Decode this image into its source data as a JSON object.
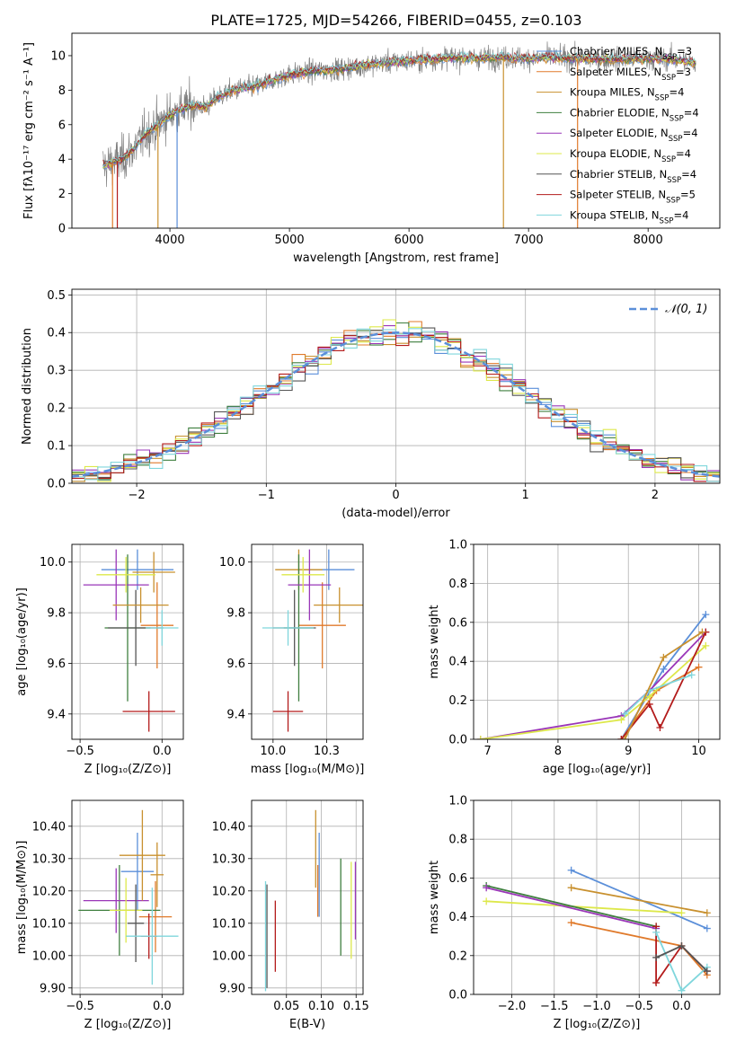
{
  "title": "PLATE=1725, MJD=54266, FIBERID=0455, z=0.103",
  "series": [
    {
      "name": "Chabrier MILES, N",
      "sub": "SSP",
      "tail": "=3",
      "color": "#5b8fd9"
    },
    {
      "name": "Salpeter MILES, N",
      "sub": "SSP",
      "tail": "=3",
      "color": "#e07a2b"
    },
    {
      "name": "Kroupa MILES, N",
      "sub": "SSP",
      "tail": "=4",
      "color": "#c8902e"
    },
    {
      "name": "Chabrier ELODIE, N",
      "sub": "SSP",
      "tail": "=4",
      "color": "#3f7f3f"
    },
    {
      "name": "Salpeter ELODIE, N",
      "sub": "SSP",
      "tail": "=4",
      "color": "#9a36b8"
    },
    {
      "name": "Kroupa ELODIE, N",
      "sub": "SSP",
      "tail": "=4",
      "color": "#dde84a"
    },
    {
      "name": "Chabrier STELIB, N",
      "sub": "SSP",
      "tail": "=4",
      "color": "#555555"
    },
    {
      "name": "Salpeter STELIB, N",
      "sub": "SSP",
      "tail": "=5",
      "color": "#b31b1b"
    },
    {
      "name": "Kroupa STELIB, N",
      "sub": "SSP",
      "tail": "=4",
      "color": "#7fd6dc"
    }
  ],
  "chart_data": [
    {
      "id": "spectrum",
      "type": "line",
      "xlabel": "wavelength [Angstrom, rest frame]",
      "ylabel": "Flux [fλ10⁻¹⁷ erg cm⁻² s⁻¹ A⁻¹]",
      "xlim": [
        3180,
        8600
      ],
      "ylim": [
        0,
        11.3
      ],
      "xticks": [
        4000,
        5000,
        6000,
        7000,
        8000
      ],
      "yticks": [
        0,
        2,
        4,
        6,
        8,
        10
      ],
      "data_color": "#808080",
      "model_color": "#7fd6dc",
      "continuum": [
        [
          3450,
          3.6
        ],
        [
          3600,
          4.0
        ],
        [
          3700,
          4.6
        ],
        [
          3800,
          5.5
        ],
        [
          3900,
          6.0
        ],
        [
          4000,
          6.6
        ],
        [
          4100,
          6.9
        ],
        [
          4200,
          7.1
        ],
        [
          4300,
          7.0
        ],
        [
          4400,
          7.6
        ],
        [
          4500,
          7.9
        ],
        [
          4600,
          8.1
        ],
        [
          4700,
          8.2
        ],
        [
          4800,
          8.4
        ],
        [
          4900,
          8.7
        ],
        [
          5000,
          8.9
        ],
        [
          5200,
          9.1
        ],
        [
          5400,
          9.2
        ],
        [
          5600,
          9.4
        ],
        [
          5800,
          9.6
        ],
        [
          6000,
          9.7
        ],
        [
          6200,
          9.8
        ],
        [
          6400,
          9.9
        ],
        [
          6600,
          9.85
        ],
        [
          6800,
          9.9
        ],
        [
          7000,
          9.85
        ],
        [
          7200,
          9.9
        ],
        [
          7500,
          9.8
        ],
        [
          7800,
          9.8
        ],
        [
          8000,
          9.85
        ],
        [
          8200,
          9.8
        ],
        [
          8400,
          9.6
        ]
      ],
      "dropouts": [
        [
          3520,
          "#e07a2b"
        ],
        [
          3560,
          "#b31b1b"
        ],
        [
          3900,
          "#c8902e"
        ],
        [
          4060,
          "#5b8fd9"
        ],
        [
          6790,
          "#c8902e"
        ],
        [
          7410,
          "#e07a2b"
        ]
      ],
      "legend": "upper right"
    },
    {
      "id": "residuals",
      "type": "step",
      "xlabel": "(data-model)/error",
      "ylabel": "Normed distribution",
      "xlim": [
        -2.5,
        2.5
      ],
      "ylim": [
        0,
        0.515
      ],
      "xticks": [
        -2,
        -1,
        0,
        1,
        2
      ],
      "yticks": [
        0.0,
        0.1,
        0.2,
        0.3,
        0.4,
        0.5
      ],
      "bin_width": 0.1,
      "reference": {
        "label": "𝒩(0, 1)",
        "color": "#5b8fd9",
        "mu": 0,
        "sigma": 1,
        "peak": 0.4
      },
      "legend": "upper right"
    },
    {
      "id": "age_vs_Z",
      "type": "errorbar",
      "xlabel": "Z [log₁₀(Z/Z⊙)]",
      "ylabel": "age  [log₁₀(age/yr)]",
      "xlim": [
        -0.55,
        0.13
      ],
      "ylim": [
        9.3,
        10.07
      ],
      "xticks": [
        -0.5,
        0.0
      ],
      "yticks": [
        9.4,
        9.6,
        9.8,
        10.0
      ],
      "points": [
        {
          "s": 0,
          "x": -0.15,
          "y": 9.97,
          "xerr": 0.22,
          "yerr": 0.08
        },
        {
          "s": 1,
          "x": -0.03,
          "y": 9.75,
          "xerr": 0.1,
          "yerr": 0.17
        },
        {
          "s": 2,
          "x": -0.05,
          "y": 9.96,
          "xerr": 0.13,
          "yerr": 0.08
        },
        {
          "s": 3,
          "x": -0.21,
          "y": 9.74,
          "xerr": 0.14,
          "yerr": 0.29
        },
        {
          "s": 4,
          "x": -0.28,
          "y": 9.91,
          "xerr": 0.2,
          "yerr": 0.14
        },
        {
          "s": 5,
          "x": -0.22,
          "y": 9.95,
          "xerr": 0.18,
          "yerr": 0.07
        },
        {
          "s": 6,
          "x": -0.16,
          "y": 9.74,
          "xerr": 0.17,
          "yerr": 0.15
        },
        {
          "s": 7,
          "x": -0.08,
          "y": 9.41,
          "xerr": 0.16,
          "yerr": 0.08
        },
        {
          "s": 8,
          "x": 0.0,
          "y": 9.74,
          "xerr": 0.1,
          "yerr": 0.07
        },
        {
          "s": 2,
          "x": -0.13,
          "y": 9.83,
          "xerr": 0.17,
          "yerr": 0.07
        }
      ]
    },
    {
      "id": "age_vs_mass",
      "type": "errorbar",
      "xlabel": "mass [log₁₀(M/M⊙)]",
      "ylabel": "",
      "xlim": [
        9.9,
        10.42
      ],
      "ylim": [
        9.3,
        10.07
      ],
      "xticks": [
        10.0,
        10.25
      ],
      "yticks": [
        9.4,
        9.6,
        9.8,
        10.0
      ],
      "points": [
        {
          "s": 0,
          "x": 10.26,
          "y": 9.97,
          "xerr": 0.12,
          "yerr": 0.08
        },
        {
          "s": 1,
          "x": 10.23,
          "y": 9.75,
          "xerr": 0.11,
          "yerr": 0.17
        },
        {
          "s": 2,
          "x": 10.12,
          "y": 9.97,
          "xerr": 0.11,
          "yerr": 0.08
        },
        {
          "s": 3,
          "x": 10.12,
          "y": 9.74,
          "xerr": 0.07,
          "yerr": 0.29
        },
        {
          "s": 4,
          "x": 10.17,
          "y": 9.91,
          "xerr": 0.1,
          "yerr": 0.14
        },
        {
          "s": 5,
          "x": 10.14,
          "y": 9.95,
          "xerr": 0.1,
          "yerr": 0.07
        },
        {
          "s": 6,
          "x": 10.1,
          "y": 9.74,
          "xerr": 0.1,
          "yerr": 0.15
        },
        {
          "s": 7,
          "x": 10.07,
          "y": 9.41,
          "xerr": 0.07,
          "yerr": 0.08
        },
        {
          "s": 8,
          "x": 10.07,
          "y": 9.74,
          "xerr": 0.12,
          "yerr": 0.07
        },
        {
          "s": 2,
          "x": 10.31,
          "y": 9.83,
          "xerr": 0.12,
          "yerr": 0.07
        }
      ]
    },
    {
      "id": "weight_vs_age",
      "type": "line",
      "xlabel": "age  [log₁₀(age/yr)]",
      "ylabel": "mass weight",
      "xlim": [
        6.8,
        10.3
      ],
      "ylim": [
        0,
        1.0
      ],
      "xticks": [
        7,
        8,
        9,
        10
      ],
      "yticks": [
        0.0,
        0.2,
        0.4,
        0.6,
        0.8,
        1.0
      ],
      "lines": [
        {
          "s": 0,
          "x": [
            8.9,
            9.5,
            10.1
          ],
          "y": [
            0.0,
            0.36,
            0.64
          ]
        },
        {
          "s": 1,
          "x": [
            8.9,
            9.4,
            10.0
          ],
          "y": [
            0.0,
            0.25,
            0.37
          ]
        },
        {
          "s": 4,
          "x": [
            6.9,
            8.9,
            9.3,
            10.1
          ],
          "y": [
            0.0,
            0.12,
            0.25,
            0.55
          ]
        },
        {
          "s": 5,
          "x": [
            6.9,
            8.9,
            9.3,
            10.1
          ],
          "y": [
            0.0,
            0.1,
            0.22,
            0.48
          ]
        },
        {
          "s": 7,
          "x": [
            8.9,
            9.3,
            9.45,
            10.1
          ],
          "y": [
            0.0,
            0.18,
            0.06,
            0.55
          ]
        },
        {
          "s": 8,
          "x": [
            8.95,
            9.3,
            9.9
          ],
          "y": [
            0.13,
            0.25,
            0.33
          ]
        },
        {
          "s": 2,
          "x": [
            8.95,
            9.5,
            10.05
          ],
          "y": [
            0.0,
            0.42,
            0.55
          ]
        }
      ]
    },
    {
      "id": "mass_vs_Z",
      "type": "errorbar",
      "xlabel": "Z [log₁₀(Z/Z⊙)]",
      "ylabel": "mass [log₁₀(M/M⊙)]",
      "xlim": [
        -0.55,
        0.13
      ],
      "ylim": [
        9.88,
        10.48
      ],
      "xticks": [
        -0.5,
        0.0
      ],
      "yticks": [
        9.9,
        10.0,
        10.1,
        10.2,
        10.3,
        10.4
      ],
      "points": [
        {
          "s": 0,
          "x": -0.15,
          "y": 10.26,
          "xerr": 0.1,
          "yerr": 0.12
        },
        {
          "s": 1,
          "x": -0.04,
          "y": 10.12,
          "xerr": 0.1,
          "yerr": 0.11
        },
        {
          "s": 2,
          "x": -0.03,
          "y": 10.25,
          "xerr": 0.04,
          "yerr": 0.1
        },
        {
          "s": 3,
          "x": -0.26,
          "y": 10.14,
          "xerr": 0.25,
          "yerr": 0.14
        },
        {
          "s": 4,
          "x": -0.28,
          "y": 10.17,
          "xerr": 0.2,
          "yerr": 0.1
        },
        {
          "s": 5,
          "x": -0.22,
          "y": 10.14,
          "xerr": 0.1,
          "yerr": 0.1
        },
        {
          "s": 6,
          "x": -0.16,
          "y": 10.1,
          "xerr": 0.05,
          "yerr": 0.12
        },
        {
          "s": 7,
          "x": -0.08,
          "y": 10.06,
          "xerr": 0.05,
          "yerr": 0.07
        },
        {
          "s": 8,
          "x": -0.06,
          "y": 10.06,
          "xerr": 0.16,
          "yerr": 0.15
        },
        {
          "s": 2,
          "x": -0.12,
          "y": 10.31,
          "xerr": 0.14,
          "yerr": 0.14
        }
      ]
    },
    {
      "id": "mass_vs_ebv",
      "type": "errorbar",
      "xlabel": "E(B-V)",
      "ylabel": "",
      "xlim": [
        0.0,
        0.16
      ],
      "ylim": [
        9.88,
        10.48
      ],
      "xticks": [
        0.05,
        0.1,
        0.15
      ],
      "yticks": [
        9.9,
        10.0,
        10.1,
        10.2,
        10.3,
        10.4
      ],
      "points": [
        {
          "s": 0,
          "x": 0.097,
          "y": 10.25,
          "xerr": 0.0,
          "yerr": 0.13
        },
        {
          "s": 1,
          "x": 0.095,
          "y": 10.2,
          "xerr": 0.0,
          "yerr": 0.08
        },
        {
          "s": 3,
          "x": 0.128,
          "y": 10.15,
          "xerr": 0.0,
          "yerr": 0.15
        },
        {
          "s": 4,
          "x": 0.149,
          "y": 10.17,
          "xerr": 0.0,
          "yerr": 0.12
        },
        {
          "s": 5,
          "x": 0.143,
          "y": 10.14,
          "xerr": 0.0,
          "yerr": 0.15
        },
        {
          "s": 6,
          "x": 0.022,
          "y": 10.06,
          "xerr": 0.0,
          "yerr": 0.16
        },
        {
          "s": 7,
          "x": 0.034,
          "y": 10.06,
          "xerr": 0.0,
          "yerr": 0.11
        },
        {
          "s": 8,
          "x": 0.02,
          "y": 10.06,
          "xerr": 0.0,
          "yerr": 0.17
        },
        {
          "s": 2,
          "x": 0.092,
          "y": 10.33,
          "xerr": 0.0,
          "yerr": 0.12
        }
      ]
    },
    {
      "id": "weight_vs_Z",
      "type": "line",
      "xlabel": "Z [log₁₀(Z/Z⊙)]",
      "ylabel": "mass weight",
      "xlim": [
        -2.45,
        0.45
      ],
      "ylim": [
        0,
        1.0
      ],
      "xticks": [
        -2.0,
        -1.5,
        -1.0,
        -0.5,
        0.0
      ],
      "yticks": [
        0.0,
        0.2,
        0.4,
        0.6,
        0.8,
        1.0
      ],
      "lines": [
        {
          "s": 0,
          "x": [
            -1.3,
            0.3
          ],
          "y": [
            0.64,
            0.34
          ]
        },
        {
          "s": 2,
          "x": [
            -1.3,
            0.3
          ],
          "y": [
            0.55,
            0.42
          ]
        },
        {
          "s": 5,
          "x": [
            -2.3,
            0.0
          ],
          "y": [
            0.48,
            0.42
          ]
        },
        {
          "s": 3,
          "x": [
            -2.3,
            -0.3
          ],
          "y": [
            0.56,
            0.35
          ]
        },
        {
          "s": 4,
          "x": [
            -2.3,
            -0.3
          ],
          "y": [
            0.55,
            0.34
          ]
        },
        {
          "s": 1,
          "x": [
            -1.3,
            0.0,
            0.3
          ],
          "y": [
            0.37,
            0.25,
            0.1
          ]
        },
        {
          "s": 7,
          "x": [
            -0.3,
            -0.3,
            0.0,
            0.3
          ],
          "y": [
            0.35,
            0.06,
            0.25,
            0.12
          ]
        },
        {
          "s": 8,
          "x": [
            -0.3,
            0.0,
            0.3
          ],
          "y": [
            0.32,
            0.02,
            0.14
          ]
        },
        {
          "s": 6,
          "x": [
            -0.3,
            0.0,
            0.3
          ],
          "y": [
            0.19,
            0.25,
            0.12
          ]
        }
      ]
    }
  ]
}
